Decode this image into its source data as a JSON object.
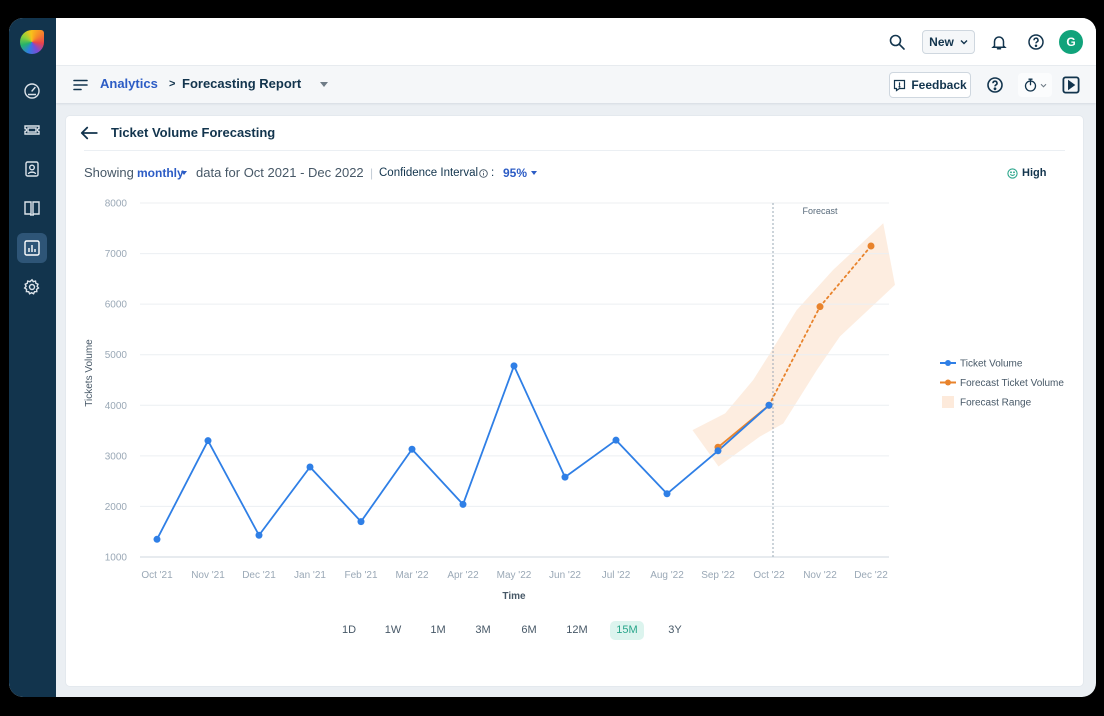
{
  "sidebar": {
    "items": [
      {
        "name": "dashboard",
        "icon": "speedometer-icon",
        "active": false
      },
      {
        "name": "tickets",
        "icon": "ticket-icon",
        "active": false
      },
      {
        "name": "contacts",
        "icon": "contact-icon",
        "active": false
      },
      {
        "name": "solutions",
        "icon": "book-icon",
        "active": false
      },
      {
        "name": "analytics",
        "icon": "bar-chart-icon",
        "active": true
      },
      {
        "name": "admin",
        "icon": "gear-icon",
        "active": false
      }
    ]
  },
  "topbar": {
    "new_label": "New",
    "avatar_initial": "G",
    "avatar_color": "#11a37b"
  },
  "breadcrumb": {
    "parent": "Analytics",
    "separator": ">",
    "current": "Forecasting Report"
  },
  "toolbar": {
    "feedback_label": "Feedback"
  },
  "card": {
    "title": "Ticket Volume Forecasting"
  },
  "filters": {
    "showing_label": "Showing",
    "granularity": "monthly",
    "range_text": "data for Oct 2021 - Dec 2022",
    "separator": "|",
    "ci_label": "Confidence Interval",
    "ci_colon": ":",
    "ci_value": "95%"
  },
  "confidence_badge": {
    "label": "High",
    "color": "#28a58a"
  },
  "range_buttons": [
    {
      "label": "1D",
      "active": false
    },
    {
      "label": "1W",
      "active": false
    },
    {
      "label": "1M",
      "active": false
    },
    {
      "label": "3M",
      "active": false
    },
    {
      "label": "6M",
      "active": false
    },
    {
      "label": "12M",
      "active": false
    },
    {
      "label": "15M",
      "active": true
    },
    {
      "label": "3Y",
      "active": false
    }
  ],
  "chart_data": {
    "type": "line",
    "title": "Ticket Volume Forecasting",
    "xlabel": "Time",
    "ylabel": "Tickets Volume",
    "ylim": [
      1000,
      8000
    ],
    "yticks": [
      1000,
      2000,
      3000,
      4000,
      5000,
      6000,
      7000,
      8000
    ],
    "grid": {
      "horizontal": true,
      "vertical": false
    },
    "categories": [
      "Oct '21",
      "Nov '21",
      "Dec '21",
      "Jan '21",
      "Feb '21",
      "Mar '22",
      "Apr '22",
      "May '22",
      "Jun '22",
      "Jul '22",
      "Aug '22",
      "Sep '22",
      "Oct '22",
      "Nov '22",
      "Dec '22"
    ],
    "series": [
      {
        "name": "Forecast Ticket Volume",
        "color": "#e8832c",
        "dashed_from_index": 12,
        "values": [
          null,
          null,
          null,
          null,
          null,
          null,
          null,
          null,
          null,
          null,
          null,
          3170,
          4000,
          5950,
          7150
        ]
      },
      {
        "name": "Ticket Volume",
        "color": "#2f7fe6",
        "values": [
          1350,
          3300,
          1430,
          2780,
          1700,
          3130,
          2040,
          4780,
          2580,
          3310,
          2250,
          3100,
          4000,
          null,
          null
        ]
      }
    ],
    "forecast_range": {
      "name": "Forecast Range",
      "color": "#fdeadb",
      "polygon_index_value": [
        [
          10.5,
          3510
        ],
        [
          11.14,
          3840
        ],
        [
          11.69,
          4500
        ],
        [
          12.02,
          5030
        ],
        [
          12.54,
          5880
        ],
        [
          13.26,
          6680
        ],
        [
          14.24,
          7600
        ],
        [
          14.47,
          6380
        ],
        [
          13.39,
          5360
        ],
        [
          12.94,
          4700
        ],
        [
          12.28,
          3640
        ],
        [
          11.82,
          3380
        ],
        [
          11.01,
          2790
        ]
      ]
    },
    "annotations": [
      {
        "type": "vertical-dashed-line",
        "category": "Oct '22",
        "label": "Forecast"
      }
    ],
    "legend": {
      "position": "right",
      "entries": [
        {
          "label": "Ticket Volume",
          "kind": "line-marker",
          "color": "#2f7fe6"
        },
        {
          "label": "Forecast Ticket Volume",
          "kind": "line-marker",
          "color": "#e8832c"
        },
        {
          "label": "Forecast Range",
          "kind": "area",
          "color": "#fdeadb"
        }
      ]
    }
  }
}
